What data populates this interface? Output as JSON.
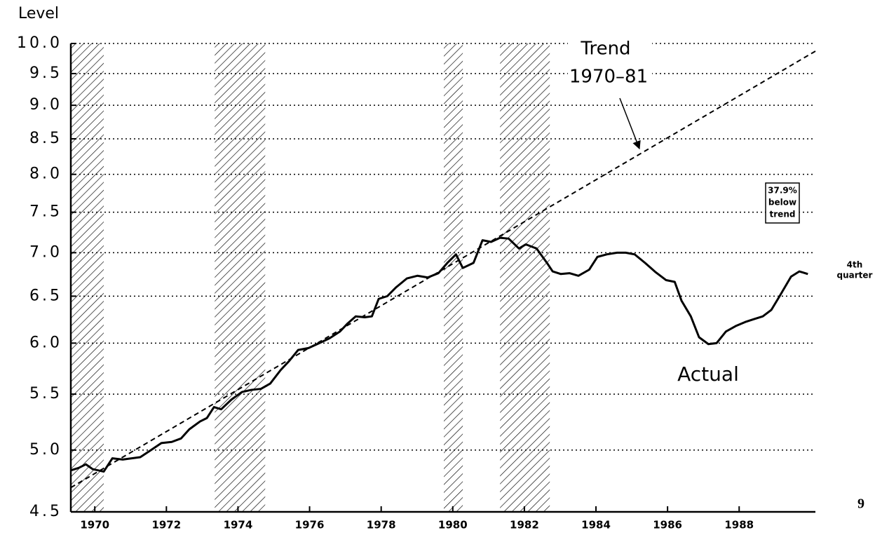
{
  "chart_data": {
    "type": "line",
    "ylabel": "Level",
    "ylog": true,
    "grid": true,
    "xlim": [
      1969.33,
      1990.13
    ],
    "xticks": [
      1970,
      1972,
      1974,
      1976,
      1978,
      1980,
      1982,
      1984,
      1986,
      1988
    ],
    "ylim": [
      4.5,
      10
    ],
    "yticks": [
      {
        "value": 10,
        "label": "10.0"
      },
      9.5,
      {
        "value": 9,
        "label": "9.0"
      },
      8.5,
      {
        "value": 8,
        "label": "8.0"
      },
      7.5,
      {
        "value": 7,
        "label": "7.0"
      },
      6.5,
      {
        "value": 6,
        "label": "6.0"
      },
      5.5,
      {
        "value": 5,
        "label": "5.0"
      },
      4.5
    ],
    "shaded_periods": [
      [
        1969.33,
        1970.25
      ],
      [
        1973.35,
        1974.76
      ],
      [
        1979.75,
        1980.28
      ],
      [
        1981.32,
        1982.71
      ]
    ],
    "series": [
      {
        "name": "Trend",
        "color": "#000000",
        "dashed": true,
        "x": [
          1969.33,
          1990.13
        ],
        "values": [
          4.69,
          9.87
        ]
      },
      {
        "name": "Actual",
        "color": "#000000",
        "dashed": false,
        "x": [
          1969.33,
          1969.55,
          1969.75,
          1969.94,
          1970.25,
          1970.49,
          1970.78,
          1971.27,
          1971.57,
          1971.86,
          1972.15,
          1972.41,
          1972.64,
          1972.94,
          1973.13,
          1973.33,
          1973.53,
          1973.82,
          1974.11,
          1974.37,
          1974.64,
          1974.9,
          1975.19,
          1975.43,
          1975.68,
          1975.97,
          1976.27,
          1976.56,
          1976.85,
          1977.05,
          1977.29,
          1977.54,
          1977.74,
          1977.93,
          1978.17,
          1978.42,
          1978.72,
          1979.01,
          1979.3,
          1979.6,
          1979.85,
          1980.09,
          1980.28,
          1980.58,
          1980.83,
          1981.07,
          1981.32,
          1981.56,
          1981.85,
          1982.04,
          1982.34,
          1982.63,
          1982.79,
          1983.02,
          1983.26,
          1983.51,
          1983.81,
          1984.04,
          1984.3,
          1984.59,
          1984.83,
          1985.08,
          1985.37,
          1985.67,
          1985.96,
          1986.2,
          1986.39,
          1986.65,
          1986.88,
          1987.14,
          1987.37,
          1987.63,
          1987.92,
          1988.17,
          1988.41,
          1988.66,
          1988.9,
          1989.13,
          1989.45,
          1989.68,
          1989.92
        ],
        "values": [
          4.83,
          4.85,
          4.88,
          4.84,
          4.82,
          4.93,
          4.92,
          4.94,
          5.0,
          5.06,
          5.07,
          5.1,
          5.18,
          5.25,
          5.28,
          5.38,
          5.36,
          5.45,
          5.52,
          5.54,
          5.55,
          5.6,
          5.73,
          5.82,
          5.93,
          5.95,
          6.0,
          6.05,
          6.12,
          6.2,
          6.28,
          6.27,
          6.28,
          6.47,
          6.5,
          6.6,
          6.7,
          6.73,
          6.71,
          6.76,
          6.88,
          6.98,
          6.82,
          6.88,
          7.15,
          7.13,
          7.18,
          7.17,
          7.05,
          7.1,
          7.05,
          6.88,
          6.78,
          6.75,
          6.76,
          6.73,
          6.8,
          6.95,
          6.98,
          7.0,
          7.0,
          6.98,
          6.88,
          6.77,
          6.68,
          6.66,
          6.45,
          6.28,
          6.06,
          5.99,
          6.0,
          6.12,
          6.18,
          6.22,
          6.25,
          6.28,
          6.35,
          6.5,
          6.72,
          6.78,
          6.75
        ]
      }
    ],
    "trend_period": "1970–81",
    "box_note": [
      "37.9%",
      "below",
      "trend"
    ],
    "end_note": [
      "4th",
      "quarter"
    ],
    "page_number": "9"
  }
}
